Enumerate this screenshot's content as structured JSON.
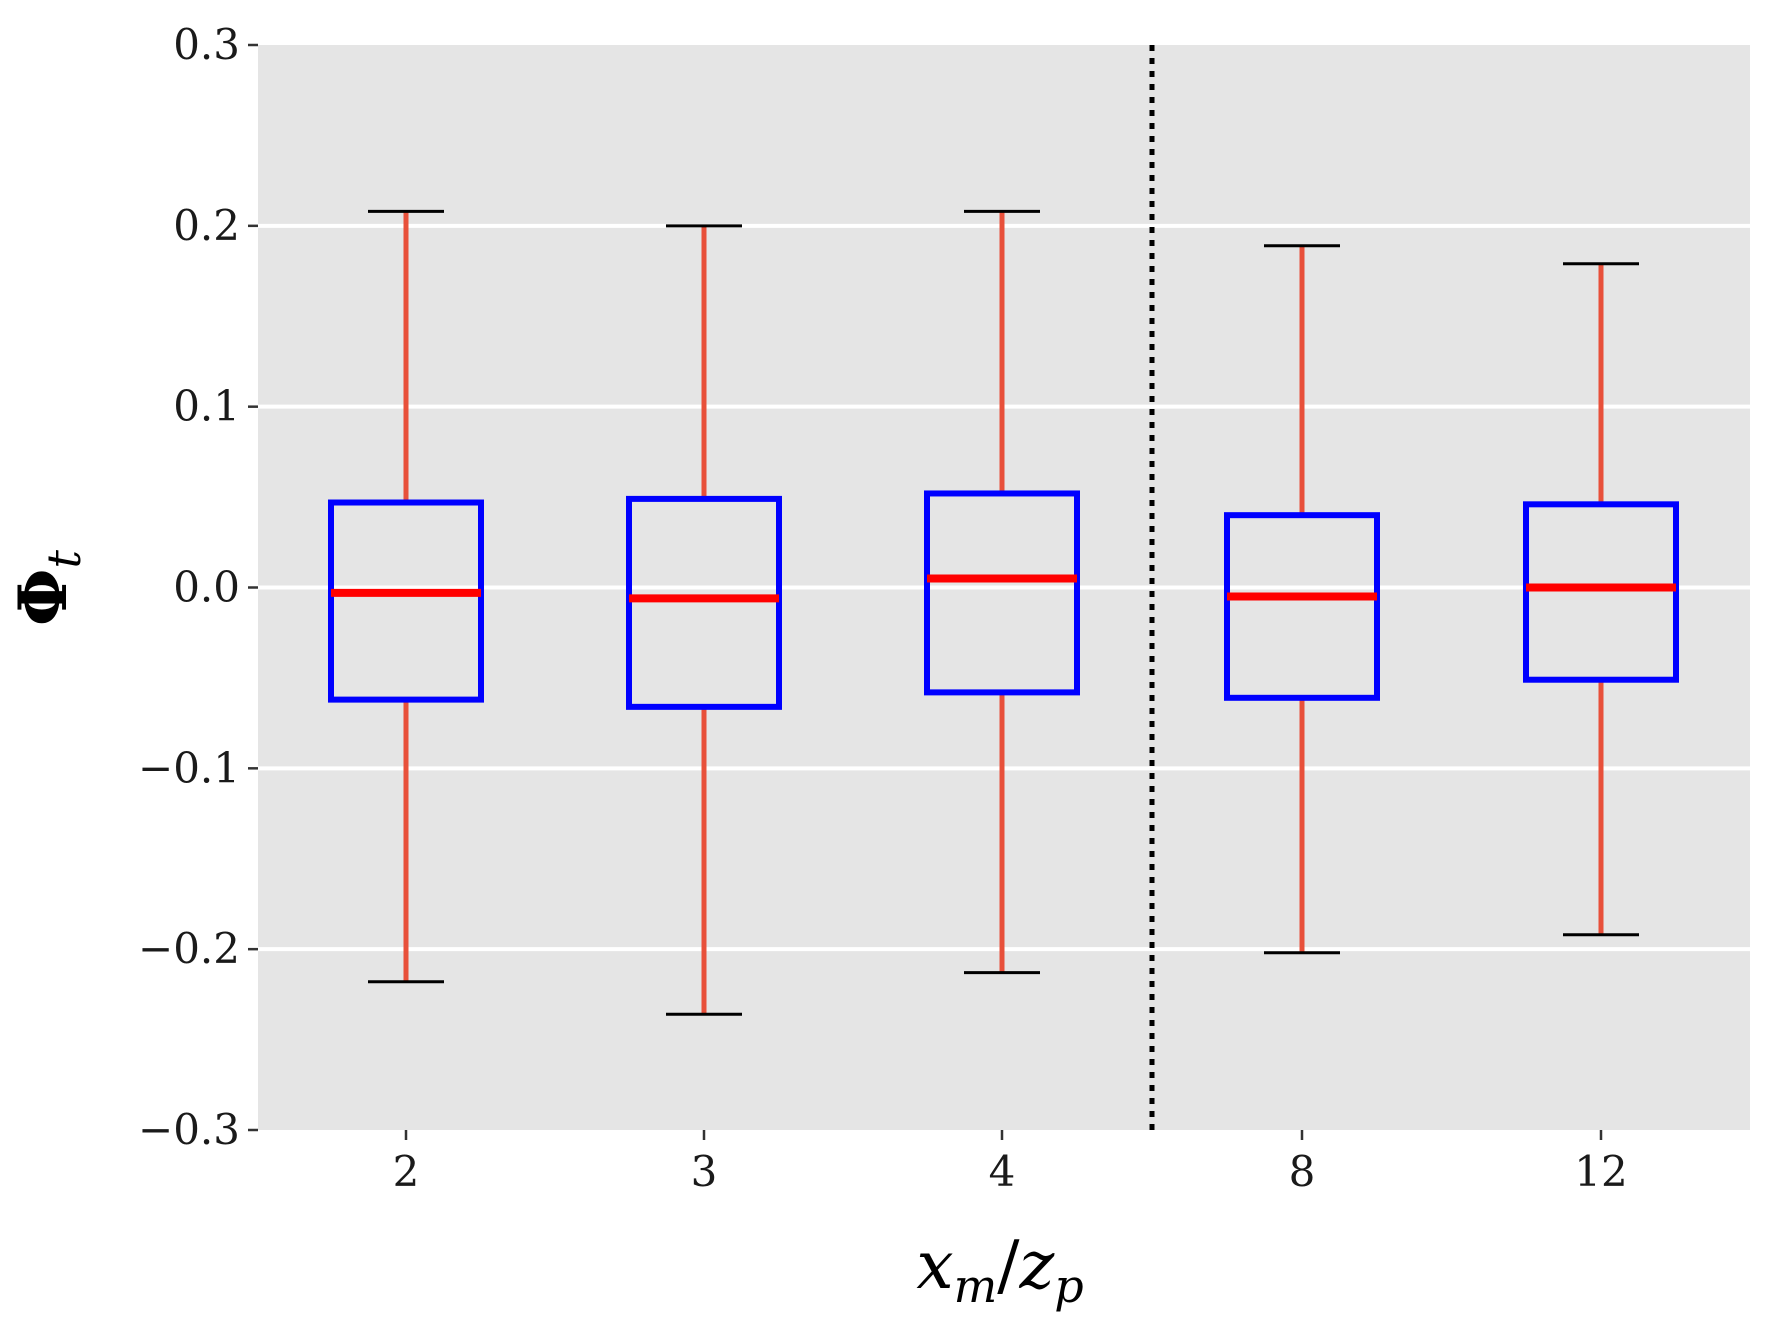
{
  "chart_data": {
    "type": "box",
    "xlabel": {
      "main": "x",
      "sub1": "m",
      "sep": "/",
      "main2": "z",
      "sub2": "p"
    },
    "ylabel": {
      "main": "Φ",
      "sub": "t"
    },
    "ylim": [
      -0.3,
      0.3
    ],
    "yticks": [
      {
        "value": 0.3,
        "label": "0.3"
      },
      {
        "value": 0.2,
        "label": "0.2"
      },
      {
        "value": 0.1,
        "label": "0.1"
      },
      {
        "value": 0.0,
        "label": "0.0"
      },
      {
        "value": -0.1,
        "label": "−0.1"
      },
      {
        "value": -0.2,
        "label": "−0.2"
      },
      {
        "value": -0.3,
        "label": "−0.3"
      }
    ],
    "categories": [
      "2",
      "3",
      "4",
      "8",
      "12"
    ],
    "boxes": [
      {
        "category": "2",
        "whisker_low": -0.218,
        "q1": -0.062,
        "median": -0.003,
        "q3": 0.047,
        "whisker_high": 0.208
      },
      {
        "category": "3",
        "whisker_low": -0.236,
        "q1": -0.066,
        "median": -0.006,
        "q3": 0.049,
        "whisker_high": 0.2
      },
      {
        "category": "4",
        "whisker_low": -0.213,
        "q1": -0.058,
        "median": 0.005,
        "q3": 0.052,
        "whisker_high": 0.208
      },
      {
        "category": "8",
        "whisker_low": -0.202,
        "q1": -0.061,
        "median": -0.005,
        "q3": 0.04,
        "whisker_high": 0.189
      },
      {
        "category": "12",
        "whisker_low": -0.192,
        "q1": -0.051,
        "median": 0.0,
        "q3": 0.046,
        "whisker_high": 0.179
      }
    ],
    "separator_after_category_index": 2,
    "grid": true,
    "colors": {
      "panel_background": "#e5e5e5",
      "gridline": "#ffffff",
      "box": "#0000ff",
      "median": "#ff0000",
      "whisker": "#e8503a",
      "whisker_cap": "#000000",
      "separator": "#000000"
    }
  }
}
